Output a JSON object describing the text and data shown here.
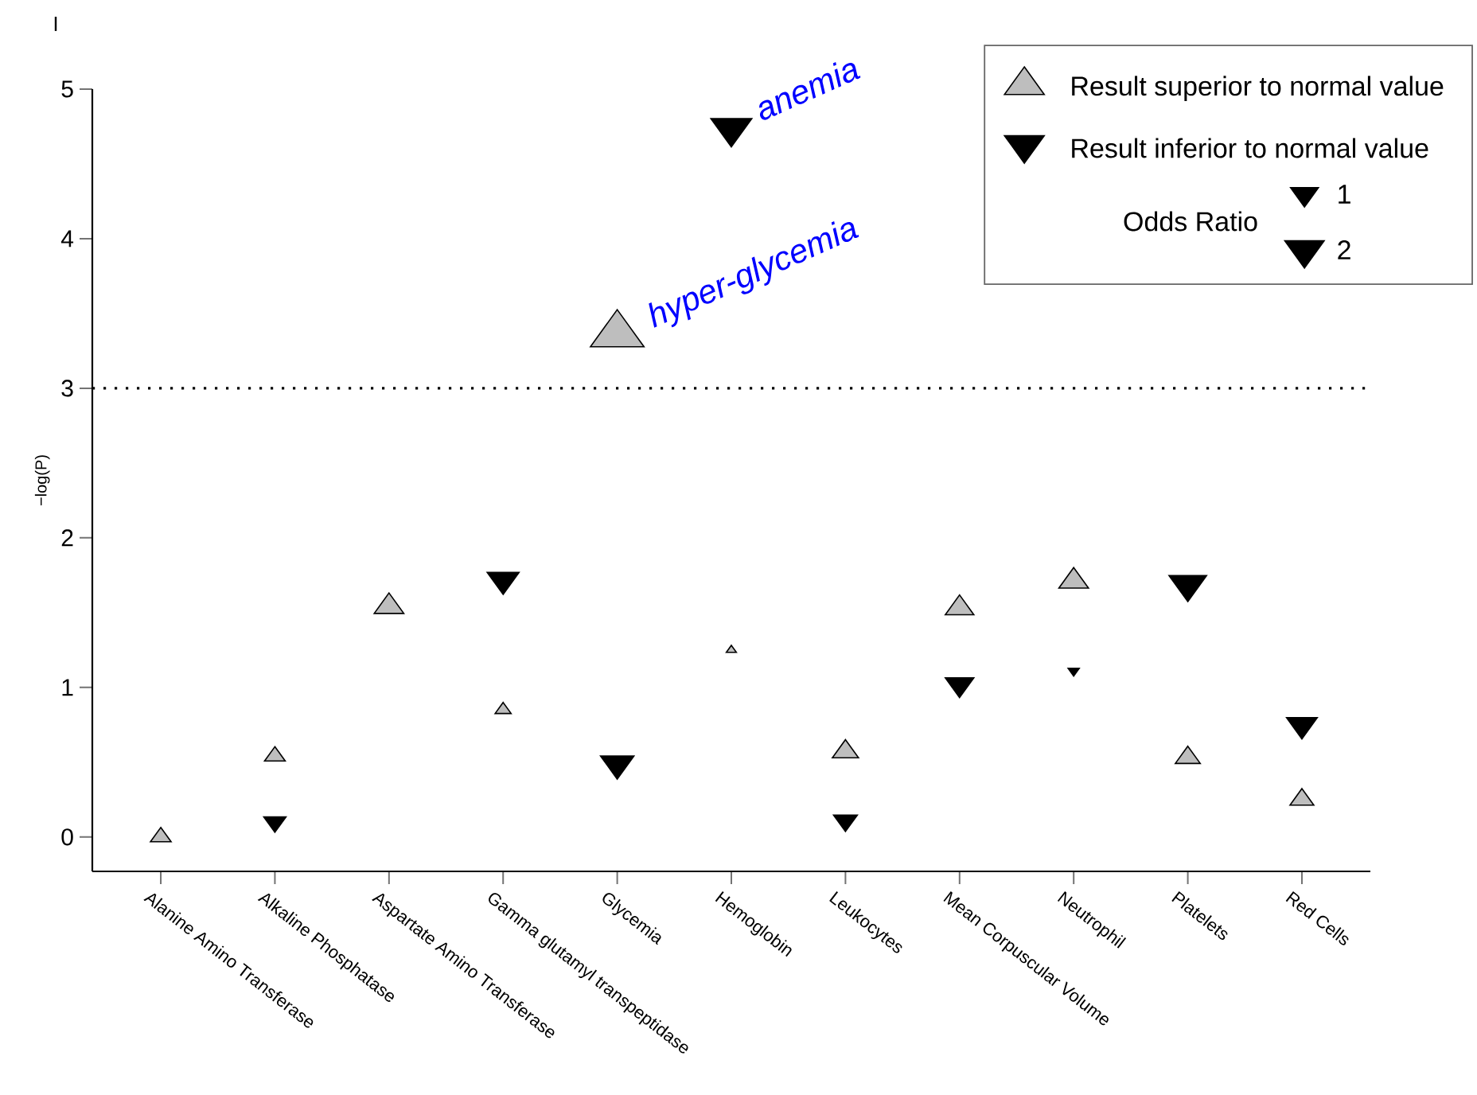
{
  "chart_data": {
    "type": "bubble",
    "ylabel": "−log(P)",
    "categories": [
      "Alanine Amino Transferase",
      "Alkaline Phosphatase",
      "Aspartate Amino Transferase",
      "Gamma glutamyl transpeptidase",
      "Glycemia",
      "Hemoglobin",
      "Leukocytes",
      "Mean Corpuscular Volume",
      "Neutrophil",
      "Platelets",
      "Red Cells"
    ],
    "series": [
      {
        "name": "Result superior to normal value",
        "color": "#bebebe",
        "marker": "triangle",
        "values": [
          0.0,
          0.54,
          1.54,
          0.85,
          3.36,
          1.25,
          0.57,
          1.53,
          1.71,
          0.53,
          0.25
        ],
        "sizes": [
          0.55,
          0.55,
          1.13,
          0.33,
          3.7,
          0.13,
          0.88,
          1.05,
          1.13,
          0.8,
          0.73
        ]
      },
      {
        "name": "Result inferior to normal value",
        "color": "#000000",
        "marker": "triangle-down",
        "values": [
          null,
          0.1,
          null,
          1.72,
          0.49,
          4.74,
          0.11,
          1.02,
          1.11,
          1.69,
          0.75
        ],
        "sizes": [
          null,
          0.64,
          null,
          1.31,
          1.44,
          2.16,
          0.73,
          1.05,
          0.16,
          1.82,
          1.22
        ]
      }
    ],
    "size_legend": [
      1,
      2
    ],
    "legend_title": "Odds Ratio",
    "legend": "top right",
    "ylim": [
      -0.23,
      5
    ],
    "yticks": [
      0,
      1,
      2,
      3,
      4,
      5
    ],
    "ref_lines": [
      {
        "axis": "y",
        "value": 3,
        "line_style": "dotted",
        "color": "#000000"
      }
    ],
    "annotations": [
      "I",
      {
        "text": "hyper-glycemia",
        "x": "Glycemia",
        "y": 3.36
      },
      {
        "text": "anemia",
        "x": "Hemoglobin",
        "y": 4.74
      }
    ]
  }
}
